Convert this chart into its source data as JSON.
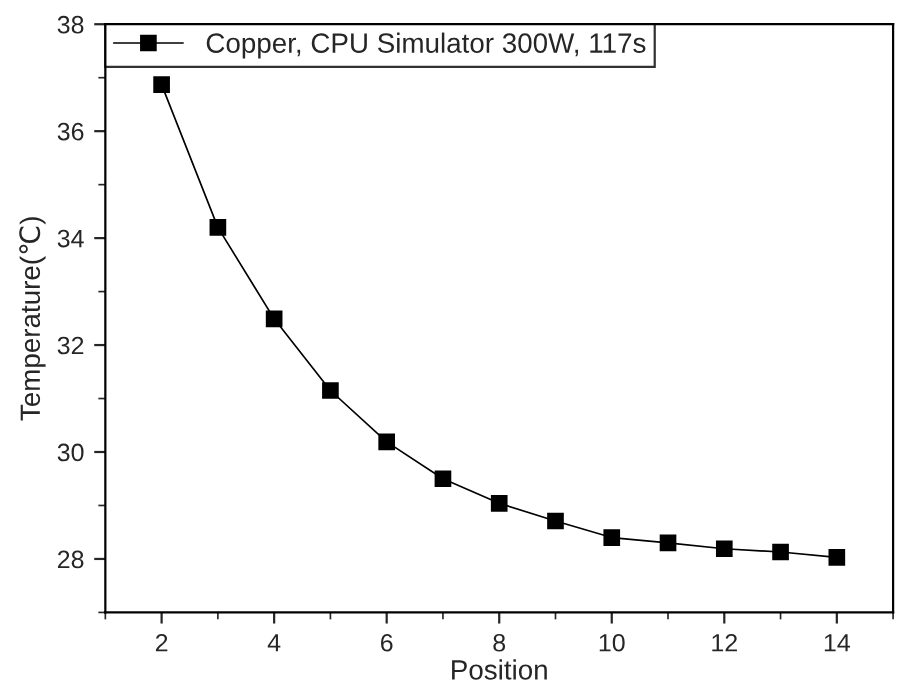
{
  "chart_data": {
    "type": "line",
    "xlabel": "Position",
    "ylabel": "Temperature(℃)",
    "x": [
      2,
      3,
      4,
      5,
      6,
      7,
      8,
      9,
      10,
      11,
      12,
      13,
      14
    ],
    "series": [
      {
        "name": "Copper, CPU Simulator 300W, 117s",
        "color": "#000000",
        "values": [
          36.87,
          34.2,
          32.49,
          31.15,
          30.19,
          29.5,
          29.04,
          28.71,
          28.4,
          28.3,
          28.19,
          28.13,
          28.03
        ]
      }
    ],
    "xlim": [
      1,
      15
    ],
    "xticks": [
      2,
      4,
      6,
      8,
      10,
      12,
      14
    ],
    "ylim": [
      27,
      38
    ],
    "yticks": [
      28,
      30,
      32,
      34,
      36,
      38
    ],
    "marker": "square",
    "line_style": "solid",
    "legend": "top left",
    "grid": false
  }
}
